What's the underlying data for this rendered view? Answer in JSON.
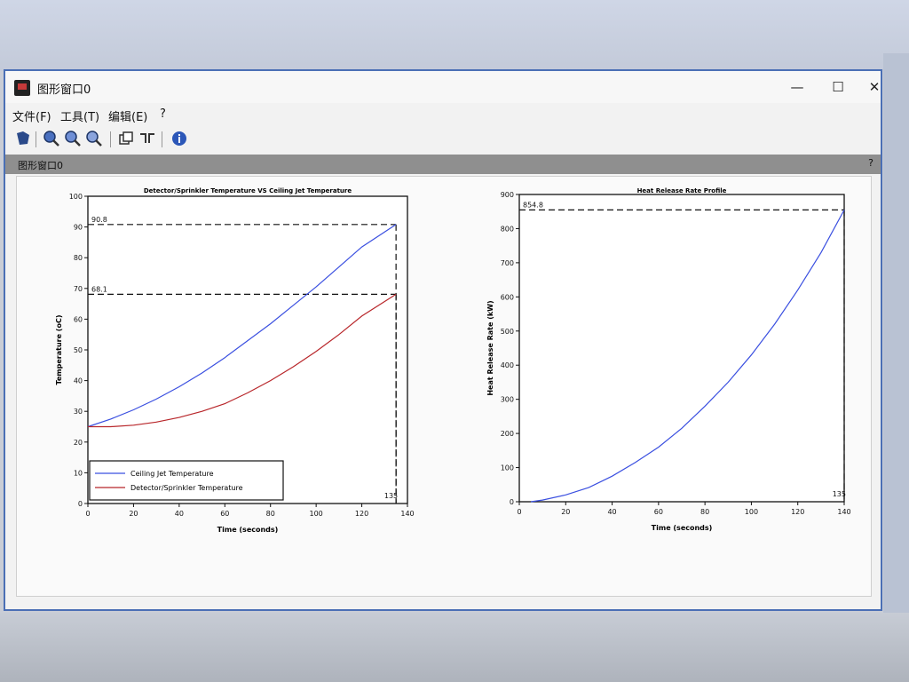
{
  "window": {
    "title": "图形窗口0",
    "controls": {
      "minimize": "—",
      "maximize": "☐",
      "close": "✕"
    }
  },
  "menu": {
    "items": [
      {
        "label": "文件(F)"
      },
      {
        "label": "工具(T)"
      },
      {
        "label": "编辑(E)"
      },
      {
        "label": "?"
      }
    ]
  },
  "toolbar": {
    "icons": [
      "rotate-icon",
      "zoom-in-icon",
      "zoom-reset-icon",
      "zoom-out-icon",
      "copy-icon",
      "datatip-icon",
      "help-icon"
    ]
  },
  "panel": {
    "title": "图形窗口0",
    "help": "?"
  },
  "chart_data": [
    {
      "type": "line",
      "title": "Detector/Sprinkler Temperature VS Ceiling Jet Temperature",
      "xlabel": "Time (seconds)",
      "ylabel": "Temperature (oC)",
      "xlim": [
        0,
        140
      ],
      "ylim": [
        0,
        100
      ],
      "xticks": [
        0,
        20,
        40,
        60,
        80,
        100,
        120,
        140
      ],
      "yticks": [
        0,
        10,
        20,
        30,
        40,
        50,
        60,
        70,
        80,
        90,
        100
      ],
      "grid": false,
      "legend_position": "bottom-left",
      "series": [
        {
          "name": "Ceiling Jet Temperature",
          "color": "#3a4fe0",
          "x": [
            0,
            10,
            20,
            30,
            40,
            50,
            60,
            70,
            80,
            90,
            100,
            110,
            120,
            135
          ],
          "y": [
            25,
            27.5,
            30.5,
            34,
            38,
            42.5,
            47.5,
            53,
            58.5,
            64.5,
            70.5,
            77,
            83.5,
            90.8
          ]
        },
        {
          "name": "Detector/Sprinkler Temperature",
          "color": "#b8262a",
          "x": [
            0,
            10,
            20,
            30,
            40,
            50,
            60,
            70,
            80,
            90,
            100,
            110,
            120,
            135
          ],
          "y": [
            25,
            25,
            25.5,
            26.5,
            28,
            30,
            32.5,
            36,
            40,
            44.5,
            49.5,
            55,
            61,
            68.1
          ]
        }
      ],
      "reference_lines": [
        {
          "y": 90.8,
          "x": 135,
          "label": "90.8"
        },
        {
          "y": 68.1,
          "x": 135,
          "label": "68.1"
        }
      ],
      "x_marker_label": "135"
    },
    {
      "type": "line",
      "title": "Heat Release Rate Profile",
      "xlabel": "Time (seconds)",
      "ylabel": "Heat Release Rate (kW)",
      "xlim": [
        0,
        140
      ],
      "ylim": [
        0,
        900
      ],
      "xticks": [
        0,
        20,
        40,
        60,
        80,
        100,
        120,
        140
      ],
      "yticks": [
        0,
        100,
        200,
        300,
        400,
        500,
        600,
        700,
        800,
        900
      ],
      "grid": false,
      "series": [
        {
          "name": "",
          "color": "#3a4fe0",
          "x": [
            5,
            10,
            20,
            30,
            40,
            50,
            60,
            70,
            80,
            90,
            100,
            110,
            120,
            130,
            140
          ],
          "y": [
            0,
            5,
            20,
            42,
            75,
            115,
            160,
            215,
            280,
            350,
            430,
            520,
            620,
            730,
            854.8
          ]
        }
      ],
      "reference_lines": [
        {
          "y": 854.8,
          "x": 140,
          "label": "854.8"
        }
      ],
      "x_marker_label": "135"
    }
  ]
}
